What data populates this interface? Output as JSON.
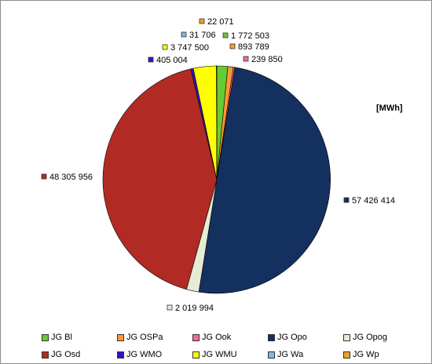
{
  "chart_data": {
    "type": "pie",
    "unit_label": "[MWh]",
    "slices": [
      {
        "name": "JG Bl",
        "value": 1772503,
        "label": "1 772 503",
        "color": "#66cc33"
      },
      {
        "name": "JG OSPa",
        "value": 893789,
        "label": "893 789",
        "color": "#ff9933"
      },
      {
        "name": "JG Ook",
        "value": 239850,
        "label": "239 850",
        "color": "#ff6699"
      },
      {
        "name": "JG Opo",
        "value": 57426414,
        "label": "57 426 414",
        "color": "#14305e"
      },
      {
        "name": "JG Opog",
        "value": 2019994,
        "label": "2 019 994",
        "color": "#e6ecd4"
      },
      {
        "name": "JG Osd",
        "value": 48305956,
        "label": "48 305 956",
        "color": "#b22a24"
      },
      {
        "name": "JG WMO",
        "value": 405004,
        "label": "405 004",
        "color": "#3311cc"
      },
      {
        "name": "JG WMU",
        "value": 3747500,
        "label": "3 747 500",
        "color": "#ffff00"
      },
      {
        "name": "JG Wa",
        "value": 31706,
        "label": "31 706",
        "color": "#88b4e0"
      },
      {
        "name": "JG Wp",
        "value": 22071,
        "label": "22 071",
        "color": "#f0a020"
      }
    ],
    "legend_order": [
      "JG Bl",
      "JG OSPa",
      "JG Ook",
      "JG Opo",
      "JG Opog",
      "JG Osd",
      "JG WMO",
      "JG WMU",
      "JG Wa",
      "JG Wp"
    ],
    "legend_placement": "bottom"
  }
}
